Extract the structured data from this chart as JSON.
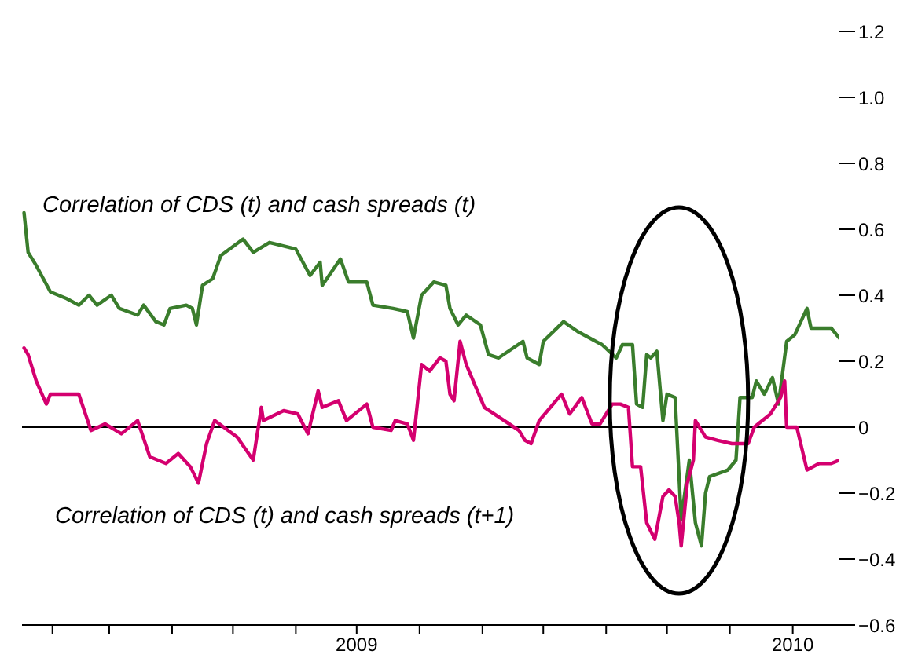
{
  "chart_data": {
    "type": "line",
    "xlim": [
      "2009-01-17",
      "2010-02-24"
    ],
    "xticks": [
      {
        "value": "2009-02-01",
        "label": null
      },
      {
        "value": "2009-03-01",
        "label": null
      },
      {
        "value": "2009-04-01",
        "label": null
      },
      {
        "value": "2009-05-01",
        "label": null
      },
      {
        "value": "2009-06-01",
        "label": null
      },
      {
        "value": "2009-07-01",
        "label": "2009"
      },
      {
        "value": "2009-08-01",
        "label": null
      },
      {
        "value": "2009-09-01",
        "label": null
      },
      {
        "value": "2009-10-01",
        "label": null
      },
      {
        "value": "2009-11-01",
        "label": null
      },
      {
        "value": "2009-12-01",
        "label": null
      },
      {
        "value": "2010-01-01",
        "label": null
      },
      {
        "value": "2010-02-01",
        "label": "2010"
      }
    ],
    "ylim": [
      -0.6,
      1.2
    ],
    "yticks": [
      1.2,
      {
        "value": 1,
        "label": "1.0"
      },
      0.8,
      0.6,
      0.4,
      0.2,
      0,
      {
        "value": -0.2,
        "label": "−0.2"
      },
      {
        "value": -0.4,
        "label": "−0.4"
      },
      {
        "value": -0.6,
        "label": "−0.6"
      }
    ],
    "ref_lines": [
      {
        "axis": "y",
        "value": 0,
        "color": "#000000"
      }
    ],
    "series": [
      {
        "name": "Correlation of CDS (t) and cash spreads (t)",
        "color": "#3a7d2c",
        "x": [
          "2009-01-18",
          "2009-01-20",
          "2009-01-24",
          "2009-01-31",
          "2009-02-08",
          "2009-02-14",
          "2009-02-19",
          "2009-02-23",
          "2009-03-02",
          "2009-03-06",
          "2009-03-15",
          "2009-03-18",
          "2009-03-24",
          "2009-03-28",
          "2009-03-31",
          "2009-04-08",
          "2009-04-11",
          "2009-04-13",
          "2009-04-16",
          "2009-04-21",
          "2009-04-25",
          "2009-05-06",
          "2009-05-11",
          "2009-05-19",
          "2009-06-01",
          "2009-06-08",
          "2009-06-13",
          "2009-06-14",
          "2009-06-23",
          "2009-06-27",
          "2009-07-06",
          "2009-07-09",
          "2009-07-19",
          "2009-07-26",
          "2009-07-29",
          "2009-08-02",
          "2009-08-08",
          "2009-08-14",
          "2009-08-16",
          "2009-08-20",
          "2009-08-24",
          "2009-08-31",
          "2009-09-04",
          "2009-09-09",
          "2009-09-21",
          "2009-09-23",
          "2009-09-29",
          "2009-10-01",
          "2009-10-11",
          "2009-10-18",
          "2009-10-30",
          "2009-11-06",
          "2009-11-09",
          "2009-11-14",
          "2009-11-16",
          "2009-11-19",
          "2009-11-21",
          "2009-11-23",
          "2009-11-26",
          "2009-11-29",
          "2009-12-01",
          "2009-12-05",
          "2009-12-08",
          "2009-12-12",
          "2009-12-15",
          "2009-12-18",
          "2009-12-20",
          "2009-12-22",
          "2009-12-31",
          "2010-01-04",
          "2010-01-06",
          "2010-01-12",
          "2010-01-14",
          "2010-01-18",
          "2010-01-22",
          "2010-01-25",
          "2010-01-29",
          "2010-02-02",
          "2010-02-08",
          "2010-02-10",
          "2010-02-20",
          "2010-02-24"
        ],
        "values": [
          0.65,
          0.53,
          0.49,
          0.41,
          0.39,
          0.37,
          0.4,
          0.37,
          0.4,
          0.36,
          0.34,
          0.37,
          0.32,
          0.31,
          0.36,
          0.37,
          0.36,
          0.31,
          0.43,
          0.45,
          0.52,
          0.57,
          0.53,
          0.56,
          0.54,
          0.46,
          0.5,
          0.43,
          0.51,
          0.44,
          0.44,
          0.37,
          0.36,
          0.35,
          0.27,
          0.4,
          0.44,
          0.43,
          0.36,
          0.31,
          0.34,
          0.31,
          0.22,
          0.21,
          0.26,
          0.21,
          0.19,
          0.26,
          0.32,
          0.29,
          0.25,
          0.21,
          0.25,
          0.25,
          0.07,
          0.06,
          0.22,
          0.21,
          0.23,
          0.02,
          0.1,
          0.09,
          -0.28,
          -0.1,
          -0.29,
          -0.36,
          -0.2,
          -0.15,
          -0.13,
          -0.1,
          0.09,
          0.09,
          0.14,
          0.1,
          0.15,
          0.07,
          0.26,
          0.28,
          0.36,
          0.3,
          0.3,
          0.27
        ]
      },
      {
        "name": "Correlation of CDS (t) and cash spreads (t+1)",
        "color": "#d4006f",
        "x": [
          "2009-01-18",
          "2009-01-20",
          "2009-01-24",
          "2009-01-29",
          "2009-01-31",
          "2009-02-14",
          "2009-02-20",
          "2009-02-27",
          "2009-03-07",
          "2009-03-15",
          "2009-03-21",
          "2009-03-29",
          "2009-04-04",
          "2009-04-10",
          "2009-04-14",
          "2009-04-18",
          "2009-04-22",
          "2009-05-03",
          "2009-05-11",
          "2009-05-15",
          "2009-05-16",
          "2009-05-26",
          "2009-06-02",
          "2009-06-07",
          "2009-06-12",
          "2009-06-14",
          "2009-06-22",
          "2009-06-26",
          "2009-07-06",
          "2009-07-09",
          "2009-07-18",
          "2009-07-20",
          "2009-07-26",
          "2009-07-29",
          "2009-08-02",
          "2009-08-06",
          "2009-08-11",
          "2009-08-14",
          "2009-08-16",
          "2009-08-18",
          "2009-08-21",
          "2009-08-24",
          "2009-09-02",
          "2009-09-19",
          "2009-09-22",
          "2009-09-25",
          "2009-09-29",
          "2009-10-10",
          "2009-10-14",
          "2009-10-20",
          "2009-10-25",
          "2009-10-29",
          "2009-11-04",
          "2009-11-08",
          "2009-11-12",
          "2009-11-14",
          "2009-11-18",
          "2009-11-21",
          "2009-11-25",
          "2009-11-29",
          "2009-12-02",
          "2009-12-05",
          "2009-12-07",
          "2009-12-08",
          "2009-12-11",
          "2009-12-14",
          "2009-12-15",
          "2009-12-20",
          "2009-12-26",
          "2010-01-02",
          "2010-01-06",
          "2010-01-10",
          "2010-01-13",
          "2010-01-21",
          "2010-01-26",
          "2010-01-28",
          "2010-01-29",
          "2010-02-03",
          "2010-02-08",
          "2010-02-14",
          "2010-02-20",
          "2010-02-24"
        ],
        "values": [
          0.24,
          0.22,
          0.14,
          0.07,
          0.1,
          0.1,
          -0.01,
          0.01,
          -0.02,
          0.02,
          -0.09,
          -0.11,
          -0.08,
          -0.12,
          -0.17,
          -0.05,
          0.02,
          -0.03,
          -0.1,
          0.06,
          0.02,
          0.05,
          0.04,
          -0.02,
          0.11,
          0.06,
          0.08,
          0.02,
          0.07,
          0,
          -0.01,
          0.02,
          0.01,
          -0.04,
          0.19,
          0.17,
          0.21,
          0.2,
          0.1,
          0.08,
          0.26,
          0.19,
          0.06,
          -0.01,
          -0.04,
          -0.05,
          0.02,
          0.1,
          0.04,
          0.09,
          0.01,
          0.01,
          0.07,
          0.07,
          0.06,
          -0.12,
          -0.12,
          -0.29,
          -0.34,
          -0.21,
          -0.19,
          -0.21,
          -0.29,
          -0.36,
          -0.17,
          -0.1,
          0.02,
          -0.03,
          -0.04,
          -0.05,
          -0.05,
          -0.05,
          0,
          0.04,
          0.09,
          0.14,
          0,
          0,
          -0.13,
          -0.11,
          -0.11,
          -0.1
        ]
      }
    ]
  }
}
